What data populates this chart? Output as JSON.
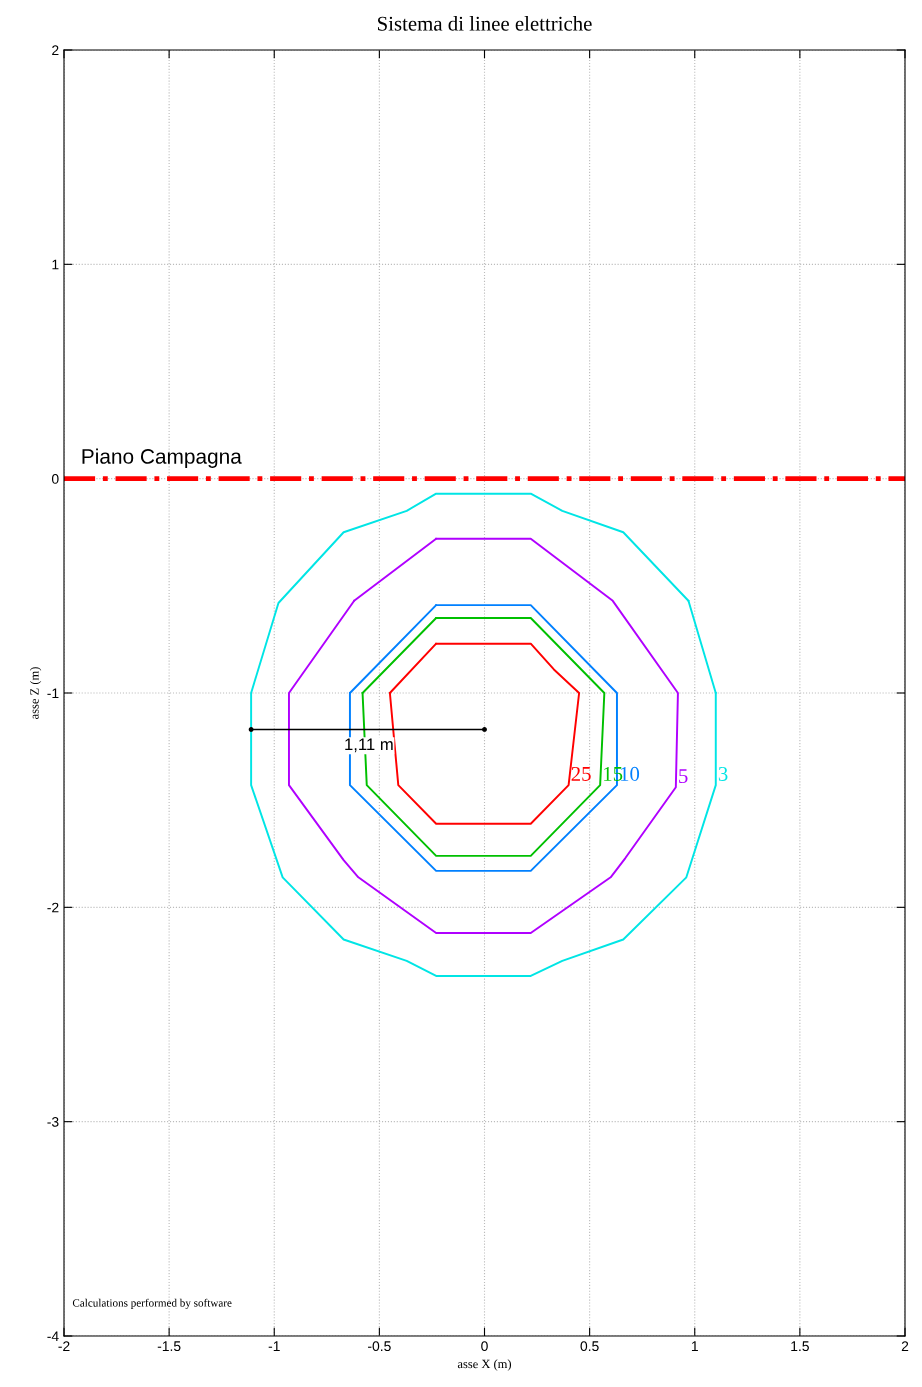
{
  "chart_data": {
    "type": "line",
    "title": "Sistema di linee elettriche",
    "xlabel": "asse X (m)",
    "ylabel": "asse Z (m)",
    "xlim": [
      -2,
      2
    ],
    "ylim": [
      -4,
      2
    ],
    "xticks": [
      -2,
      -1.5,
      -1,
      -0.5,
      0,
      0.5,
      1,
      1.5,
      2
    ],
    "yticks": [
      -4,
      -3,
      -2,
      -1,
      0,
      1,
      2
    ],
    "grid": true,
    "ref_lines": [
      {
        "axis": "y",
        "value": 0,
        "label": "Piano Campagna",
        "color": "#ff0000",
        "line_style": "dashdot"
      }
    ],
    "series": [
      {
        "name": "3",
        "color": "#00e5e5",
        "x": [
          1.1,
          1.1,
          0.96,
          0.66,
          0.37,
          0.22,
          -0.23,
          -0.37,
          -0.67,
          -0.96,
          -1.11,
          -1.11,
          -0.98,
          -0.67,
          -0.37,
          -0.23,
          0.22,
          0.37,
          0.66,
          0.97
        ],
        "values": [
          -1.0,
          -1.43,
          -1.86,
          -2.15,
          -2.25,
          -2.32,
          -2.32,
          -2.25,
          -2.15,
          -1.86,
          -1.43,
          -1.0,
          -0.58,
          -0.25,
          -0.15,
          -0.07,
          -0.07,
          -0.15,
          -0.25,
          -0.57
        ]
      },
      {
        "name": "5",
        "color": "#b000ff",
        "x": [
          -0.23,
          0.22,
          0.61,
          0.92,
          0.91,
          0.67,
          0.6,
          0.22,
          -0.23,
          -0.6,
          -0.67,
          -0.93,
          -0.93,
          -0.62
        ],
        "values": [
          -0.28,
          -0.28,
          -0.57,
          -1.0,
          -1.44,
          -1.77,
          -1.86,
          -2.12,
          -2.12,
          -1.86,
          -1.78,
          -1.43,
          -1.0,
          -0.57
        ]
      },
      {
        "name": "10",
        "color": "#0080ff",
        "x": [
          -0.23,
          0.22,
          0.63,
          0.63,
          0.22,
          -0.23,
          -0.64,
          -0.64
        ],
        "values": [
          -0.59,
          -0.59,
          -1.0,
          -1.43,
          -1.83,
          -1.83,
          -1.43,
          -1.0
        ]
      },
      {
        "name": "15",
        "color": "#00c000",
        "x": [
          -0.23,
          0.22,
          0.57,
          0.55,
          0.22,
          -0.23,
          -0.56,
          -0.58
        ],
        "values": [
          -0.65,
          -0.65,
          -1.0,
          -1.43,
          -1.76,
          -1.76,
          -1.43,
          -1.0
        ]
      },
      {
        "name": "25",
        "color": "#ff0000",
        "x": [
          -0.23,
          0.22,
          0.33,
          0.45,
          0.4,
          0.22,
          -0.23,
          -0.41,
          -0.45
        ],
        "values": [
          -0.77,
          -0.77,
          -0.89,
          -1.0,
          -1.43,
          -1.61,
          -1.61,
          -1.43,
          -1.0
        ]
      },
      {
        "color": "#000000",
        "marker": "circle",
        "x": [
          -1.11,
          0
        ],
        "values": [
          -1.17,
          -1.17
        ]
      }
    ],
    "annotations": [
      {
        "text": "1,11 m",
        "x": -0.55,
        "y": -1.17
      },
      "Calculations performed by software"
    ]
  }
}
